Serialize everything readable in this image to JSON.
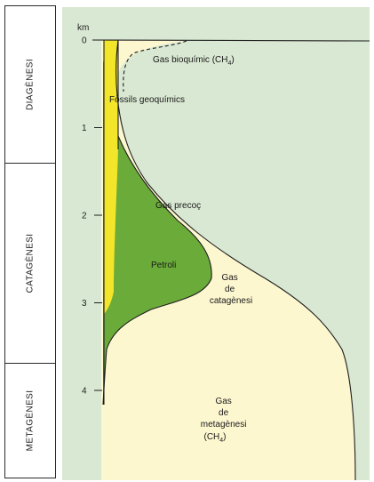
{
  "stages": [
    {
      "id": "diagenesi",
      "label": "DIAGÈNESI"
    },
    {
      "id": "catagenesi",
      "label": "CATAGÈNESI"
    },
    {
      "id": "metagenesi",
      "label": "METAGÈNESI"
    }
  ],
  "depth_axis": {
    "unit": "km",
    "ticks": [
      "0",
      "1",
      "2",
      "3",
      "4"
    ]
  },
  "regions": {
    "biogenic_gas": "Gas bioquímic (CH",
    "biogenic_gas_sub": "4",
    "biogenic_gas_close": ")",
    "fossils": "Fòssils geoquímics",
    "early_gas": "Gas precoç",
    "oil": "Petroli",
    "catagenesis_gas_line1": "Gas",
    "catagenesis_gas_line2": "de",
    "catagenesis_gas_line3": "catagènesi",
    "metagenesis_gas_line1": "Gas",
    "metagenesis_gas_line2": "de",
    "metagenesis_gas_line3": "metagènesi",
    "metagenesis_gas_line4": "(CH",
    "metagenesis_gas_line4_sub": "4",
    "metagenesis_gas_line4_close": ")"
  },
  "colors": {
    "background": "#d9e8d2",
    "gas_fill": "#fdf7d0",
    "oil_fill": "#6aab3a",
    "fossils_fill": "#f2e52a",
    "outline": "#1f1f1f"
  }
}
